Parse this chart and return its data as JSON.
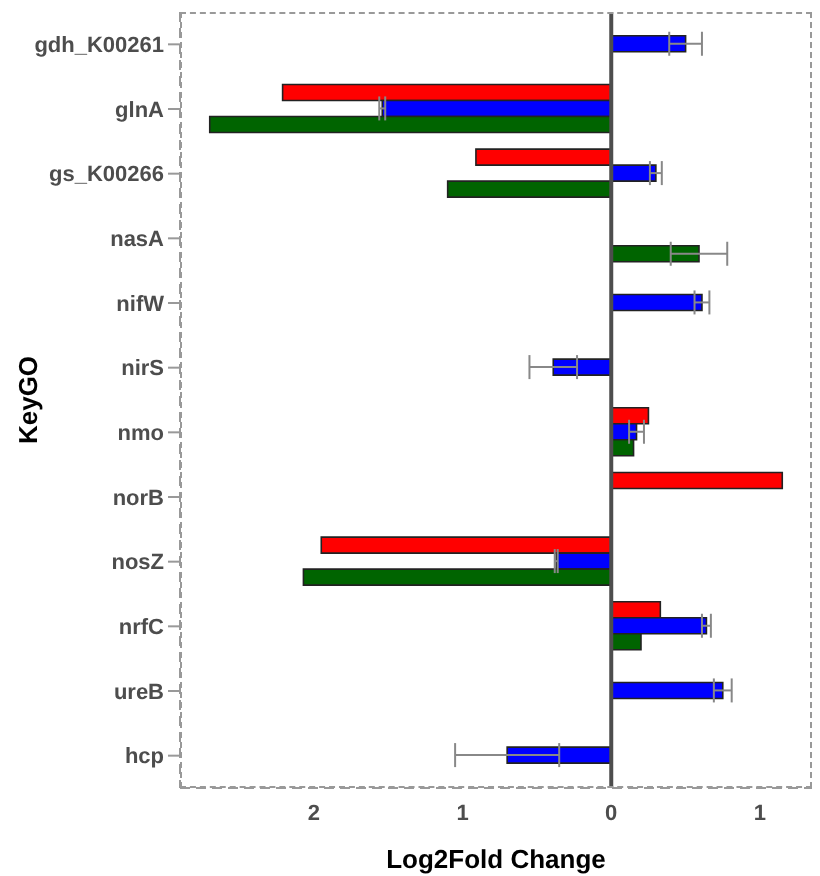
{
  "chart_data": {
    "type": "bar",
    "orientation": "horizontal",
    "xlabel": "Log2Fold Change",
    "ylabel": "KeyGO",
    "categories": [
      "gdh_K00261",
      "glnA",
      "gs_K00266",
      "nasA",
      "nifW",
      "nirS",
      "nmo",
      "norB",
      "nosZ",
      "nrfC",
      "ureB",
      "hcp"
    ],
    "series": [
      {
        "color": "#ff0000",
        "values": [
          null,
          -2.21,
          -0.91,
          null,
          null,
          null,
          0.25,
          1.15,
          -1.95,
          0.33,
          null,
          null
        ]
      },
      {
        "color": "#0000ff",
        "values": [
          0.5,
          -1.54,
          0.3,
          null,
          0.61,
          -0.39,
          0.17,
          null,
          -0.37,
          0.64,
          0.75,
          -0.7
        ],
        "errors": [
          0.11,
          0.02,
          0.04,
          null,
          0.05,
          0.16,
          0.05,
          null,
          0.01,
          0.03,
          0.06,
          0.35
        ]
      },
      {
        "color": "#006400",
        "values": [
          null,
          -2.7,
          -1.1,
          0.59,
          null,
          null,
          0.15,
          null,
          -2.07,
          0.2,
          null,
          null
        ],
        "errors": [
          null,
          null,
          null,
          0.19,
          null,
          null,
          null,
          null,
          null,
          null,
          null,
          null
        ]
      }
    ],
    "xlim": [
      -2.9,
      1.35
    ],
    "xticks": [
      {
        "value": -2,
        "label": "2"
      },
      {
        "value": -1,
        "label": "1"
      },
      0,
      1
    ],
    "ref_lines": [
      {
        "axis": "x",
        "value": 0,
        "color": "#4d4d4d"
      }
    ],
    "grid": false,
    "legend": false
  }
}
